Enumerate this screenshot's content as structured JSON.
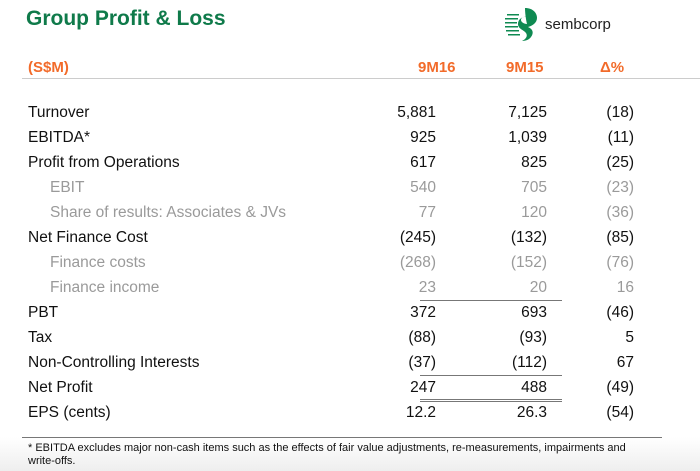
{
  "title": "Group Profit & Loss",
  "logo": {
    "text": "sembcorp"
  },
  "header": {
    "unit": "(S$M)",
    "col1": "9M16",
    "col2": "9M15",
    "col3": "Δ%"
  },
  "rows": [
    {
      "label": "Turnover",
      "v1": "5,881",
      "v2": "7,125",
      "d": "(18)",
      "sub": false
    },
    {
      "label": "EBITDA*",
      "v1": "925",
      "v2": "1,039",
      "d": "(11)",
      "sub": false
    },
    {
      "label": "Profit from Operations",
      "v1": "617",
      "v2": "825",
      "d": "(25)",
      "sub": false
    },
    {
      "label": "EBIT",
      "v1": "540",
      "v2": "705",
      "d": "(23)",
      "sub": true
    },
    {
      "label": "Share of results: Associates & JVs",
      "v1": "77",
      "v2": "120",
      "d": "(36)",
      "sub": true
    },
    {
      "label": "Net Finance Cost",
      "v1": "(245)",
      "v2": "(132)",
      "d": "(85)",
      "sub": false
    },
    {
      "label": "Finance costs",
      "v1": "(268)",
      "v2": "(152)",
      "d": "(76)",
      "sub": true
    },
    {
      "label": "Finance income",
      "v1": "23",
      "v2": "20",
      "d": "16",
      "sub": true
    },
    {
      "label": "PBT",
      "v1": "372",
      "v2": "693",
      "d": "(46)",
      "sub": false
    },
    {
      "label": "Tax",
      "v1": "(88)",
      "v2": "(93)",
      "d": "5",
      "sub": false
    },
    {
      "label": "Non-Controlling Interests",
      "v1": "(37)",
      "v2": "(112)",
      "d": "67",
      "sub": false
    },
    {
      "label": "Net Profit",
      "v1": "247",
      "v2": "488",
      "d": "(49)",
      "sub": false
    },
    {
      "label": "EPS (cents)",
      "v1": "12.2",
      "v2": "26.3",
      "d": "(54)",
      "sub": false
    }
  ],
  "footnote": "* EBITDA excludes major non-cash items such as the effects of fair value adjustments, re-measurements, impairments and write-offs."
}
